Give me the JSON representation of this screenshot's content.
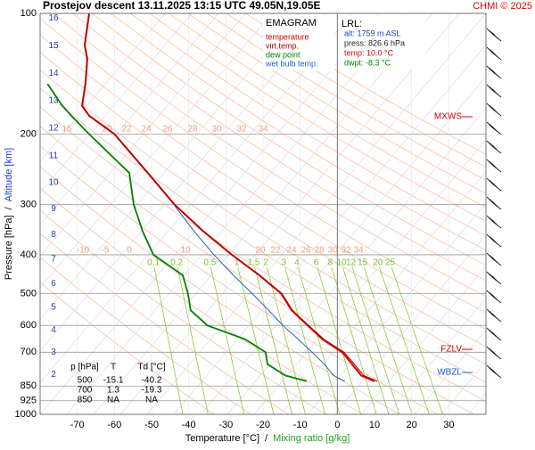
{
  "chart_data": {
    "type": "line",
    "title": "Prostejov   descent   13.11.2025 13:15 UTC  49.05N,19.05E",
    "copyright": "CHMI © 2025",
    "diagram_title": "EMAGRAM",
    "xlabel": [
      "Temperature [°C]",
      "/",
      "Mixing ratio [g/kg]"
    ],
    "ylabel": [
      "Pressure [hPa]",
      "/",
      "Altitude [km]"
    ],
    "xlim": [
      -80,
      40
    ],
    "xticks": [
      -70,
      -60,
      -50,
      -40,
      -30,
      -20,
      -10,
      0,
      10,
      20,
      30
    ],
    "ylim": [
      1000,
      100
    ],
    "yticks": [
      100,
      200,
      300,
      400,
      500,
      600,
      700,
      850,
      925,
      1000
    ],
    "y_scale": "log",
    "grid": true,
    "y2ticks": [
      2,
      3,
      4,
      5,
      6,
      7,
      8,
      9,
      10,
      11,
      12,
      13,
      14,
      15,
      16
    ],
    "pressure": [
      826.6,
      800,
      750,
      700,
      650,
      600,
      550,
      500,
      450,
      400,
      350,
      300,
      250,
      200,
      180,
      170,
      150,
      130,
      120,
      100
    ],
    "series": [
      {
        "name": "temperature",
        "color": "#e00000",
        "values": [
          10.0,
          6.4,
          4.0,
          1.3,
          -4,
          -8,
          -12.3,
          -15.1,
          -21,
          -28.4,
          -36,
          -43.8,
          -51,
          -60,
          -66.8,
          -68.7,
          -67.8,
          -67.3,
          -68,
          -66.8
        ]
      },
      {
        "name": "virt.temp.",
        "color": "#a00000",
        "values": [
          10.8,
          7.1,
          4.6,
          1.8,
          -3.6,
          -7.7,
          -12.1,
          -14.9,
          -20.9,
          -28.3,
          -36,
          -43.8,
          -51,
          -60,
          -66.8,
          -68.7,
          -67.8,
          -67.3,
          -68,
          -66.8
        ]
      },
      {
        "name": "dew point",
        "color": "#008000",
        "values": [
          -8.3,
          -14,
          -18.8,
          -19.3,
          -24.8,
          -35,
          -39.5,
          -40.2,
          -41.6,
          -49.5,
          -52.4,
          -54.8,
          -56,
          -66.8,
          -71.6,
          -74,
          -78,
          null,
          null,
          null
        ]
      },
      {
        "name": "wet bulb temp.",
        "color": "#1e60d0",
        "values": [
          2,
          -1,
          -3.5,
          -6.8,
          -10.5,
          -14.7,
          -18.5,
          -22.9,
          -28,
          -33.2,
          -38.5,
          -44,
          null,
          null,
          null,
          null,
          null,
          null,
          null,
          null
        ]
      }
    ],
    "mixing_ratio_lines": [
      0.1,
      0.2,
      0.5,
      1,
      1.5,
      2,
      3,
      4,
      6,
      8,
      10,
      12,
      15,
      20,
      25
    ],
    "adiabat_labels_upper": [
      15,
      20,
      22,
      24,
      26,
      28,
      30,
      32,
      34
    ],
    "adiabat_labels_lower": [
      -10,
      -5,
      0,
      10,
      20,
      22,
      24,
      26,
      28,
      30,
      32,
      34
    ],
    "annotations": [
      "MXWS",
      "FZLV",
      "WBZL"
    ],
    "lrl": {
      "title": "LRL:",
      "lines": [
        "alt: 1759 m ASL",
        "press: 826.6 hPa",
        "temp: 10.0 °C",
        "dwpt: -8.3 °C"
      ]
    },
    "table": {
      "header": [
        "p [hPa]",
        "T",
        "Td [°C]"
      ],
      "rows": [
        [
          "500",
          "-15.1",
          "-40.2"
        ],
        [
          "700",
          "1.3",
          "-19.3"
        ],
        [
          "850",
          "NA",
          "NA"
        ]
      ]
    }
  }
}
